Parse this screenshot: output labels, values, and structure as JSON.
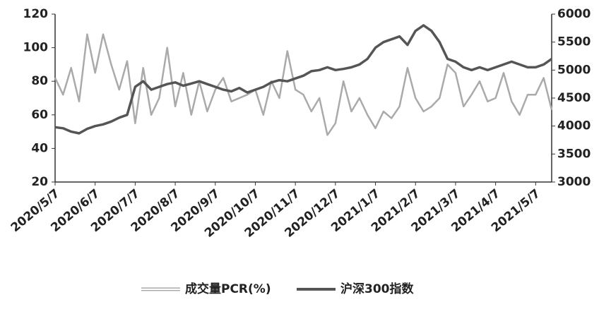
{
  "chart_data": {
    "type": "line",
    "categories": [
      "2020/5/7",
      null,
      null,
      null,
      null,
      "2020/6/7",
      null,
      null,
      null,
      null,
      "2020/7/7",
      null,
      null,
      null,
      null,
      "2020/8/7",
      null,
      null,
      null,
      null,
      "2020/9/7",
      null,
      null,
      null,
      null,
      "2020/10/7",
      null,
      null,
      null,
      null,
      "2020/11/7",
      null,
      null,
      null,
      null,
      "2020/12/7",
      null,
      null,
      null,
      null,
      "2021/1/7",
      null,
      null,
      null,
      null,
      "2021/2/7",
      null,
      null,
      null,
      null,
      "2021/3/7",
      null,
      null,
      null,
      null,
      "2021/4/7",
      null,
      null,
      null,
      null,
      "2021/5/7",
      null,
      null
    ],
    "series": [
      {
        "name": "成交量PCR(%)",
        "color": "#aaaaaa",
        "values": [
          82,
          72,
          88,
          68,
          108,
          85,
          108,
          90,
          75,
          92,
          55,
          88,
          60,
          70,
          100,
          65,
          85,
          60,
          80,
          62,
          75,
          82,
          68,
          70,
          72,
          75,
          60,
          80,
          70,
          98,
          75,
          72,
          62,
          70,
          48,
          55,
          80,
          62,
          70,
          60,
          52,
          62,
          58,
          65,
          88,
          70,
          62,
          65,
          70,
          90,
          85,
          65,
          72,
          80,
          68,
          70,
          85,
          68,
          60,
          72,
          72,
          82,
          63
        ]
      },
      {
        "name": "沪深300指数",
        "color": "#555555",
        "axis": "y2",
        "values": [
          3980,
          3960,
          3900,
          3870,
          3950,
          4000,
          4030,
          4080,
          4150,
          4200,
          4700,
          4800,
          4650,
          4700,
          4750,
          4780,
          4720,
          4760,
          4800,
          4750,
          4700,
          4650,
          4620,
          4680,
          4600,
          4650,
          4700,
          4780,
          4820,
          4800,
          4850,
          4900,
          4980,
          5000,
          5050,
          5000,
          5020,
          5050,
          5100,
          5200,
          5400,
          5500,
          5550,
          5600,
          5450,
          5700,
          5800,
          5700,
          5500,
          5200,
          5150,
          5050,
          5000,
          5050,
          5000,
          5050,
          5100,
          5150,
          5100,
          5050,
          5050,
          5100,
          5200
        ]
      }
    ],
    "ylim": [
      20,
      120
    ],
    "yticks": [
      20,
      40,
      60,
      80,
      100,
      120
    ],
    "y2lim": [
      3000,
      6000
    ],
    "y2ticks": [
      3000,
      3500,
      4000,
      4500,
      5000,
      5500,
      6000
    ],
    "legend": "bottom"
  }
}
